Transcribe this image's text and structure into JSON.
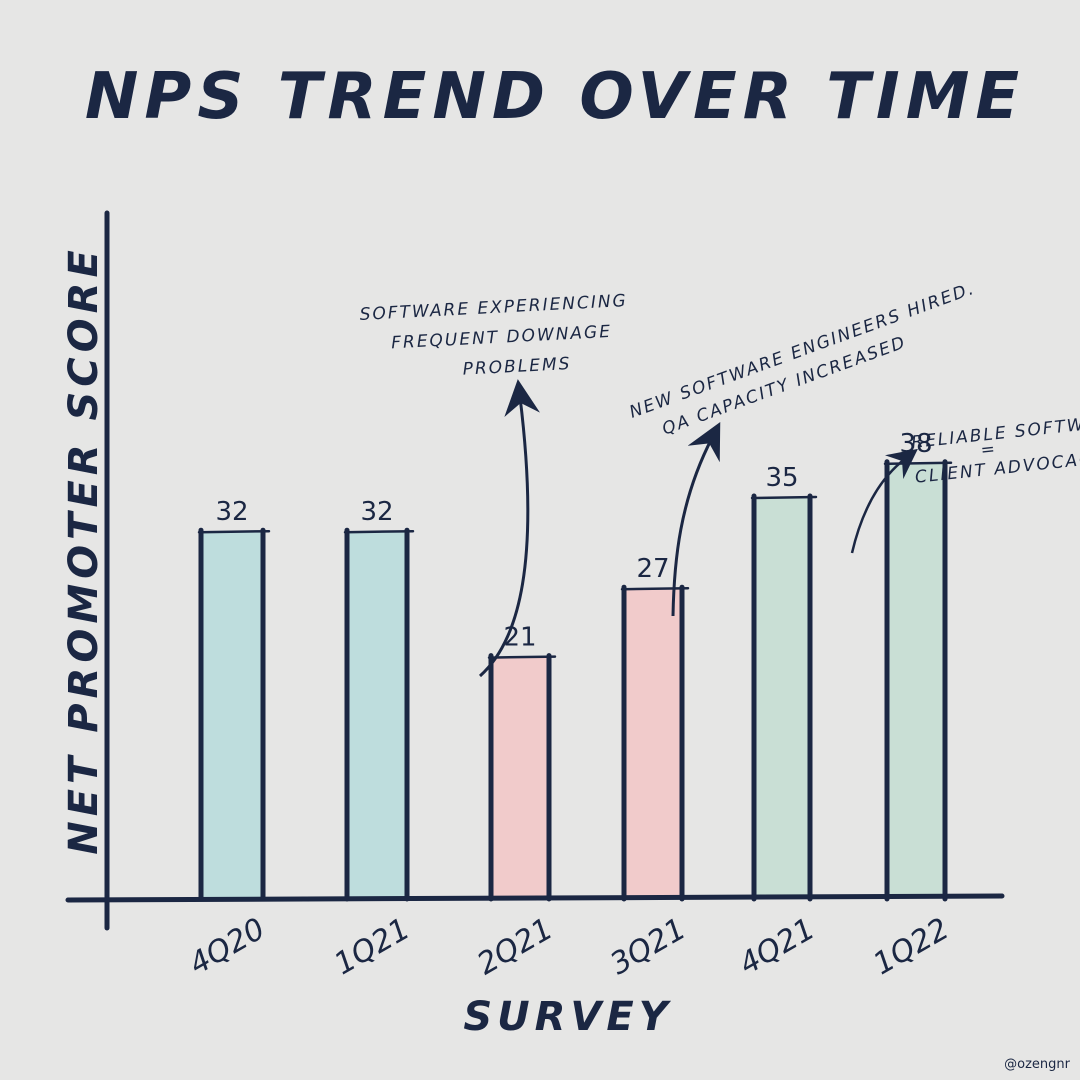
{
  "chart_data": {
    "type": "bar",
    "title": "NPS TREND OVER TIME",
    "xlabel": "SURVEY",
    "ylabel": "NET PROMOTER SCORE",
    "categories": [
      "4Q20",
      "1Q21",
      "2Q21",
      "3Q21",
      "4Q21",
      "1Q22"
    ],
    "values": [
      32,
      32,
      21,
      27,
      35,
      38
    ],
    "bar_colors": [
      "#bcdcdc",
      "#bcdcdc",
      "#f1c9c9",
      "#f1c9c9",
      "#c7ded4",
      "#c7ded4"
    ],
    "ylim": [
      0,
      60
    ],
    "grid": false,
    "annotations": [
      {
        "lines": [
          "SOFTWARE EXPERIENCING",
          "FREQUENT DOWNAGE",
          "PROBLEMS"
        ],
        "category": "2Q21"
      },
      {
        "lines": [
          "NEW SOFTWARE ENGINEERS HIRED.",
          "QA CAPACITY INCREASED"
        ],
        "category": "3Q21"
      },
      {
        "lines": [
          "RELIABLE SOFTWARE",
          "=",
          "CLIENT ADVOCACY"
        ],
        "category": "1Q22"
      }
    ]
  },
  "credit": "@ozengnr",
  "ink_color": "#1b2743"
}
